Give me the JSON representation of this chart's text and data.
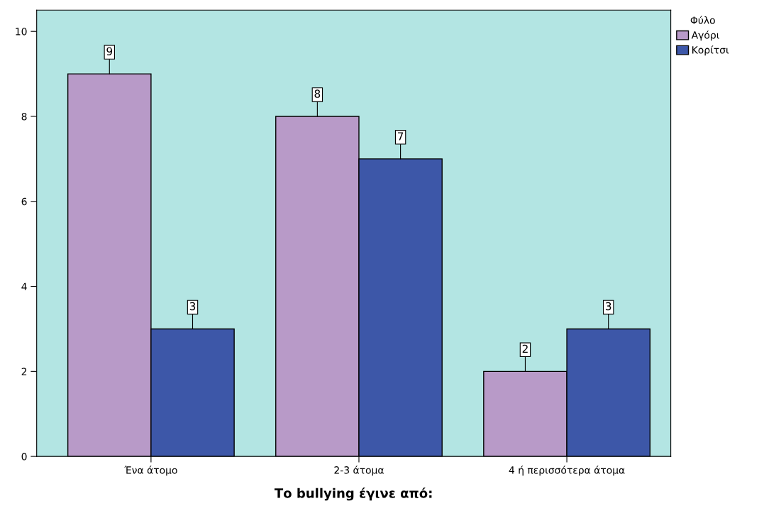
{
  "chart_data": {
    "type": "bar",
    "xlabel": "Το bullying έγινε από:",
    "legend_title": "Φύλο",
    "categories": [
      "Ένα άτομο",
      "2-3 άτομα",
      "4 ή περισσότερα άτομα"
    ],
    "series": [
      {
        "name": "Αγόρι",
        "color": "#b89ac8",
        "values": [
          9,
          8,
          2
        ]
      },
      {
        "name": "Κορίτσι",
        "color": "#3d57a8",
        "values": [
          3,
          7,
          3
        ]
      }
    ],
    "ylim": [
      0,
      10.5
    ],
    "yticks": [
      0,
      2,
      4,
      6,
      8,
      10
    ],
    "grid": false,
    "legend": "top right",
    "data_labels": true
  }
}
